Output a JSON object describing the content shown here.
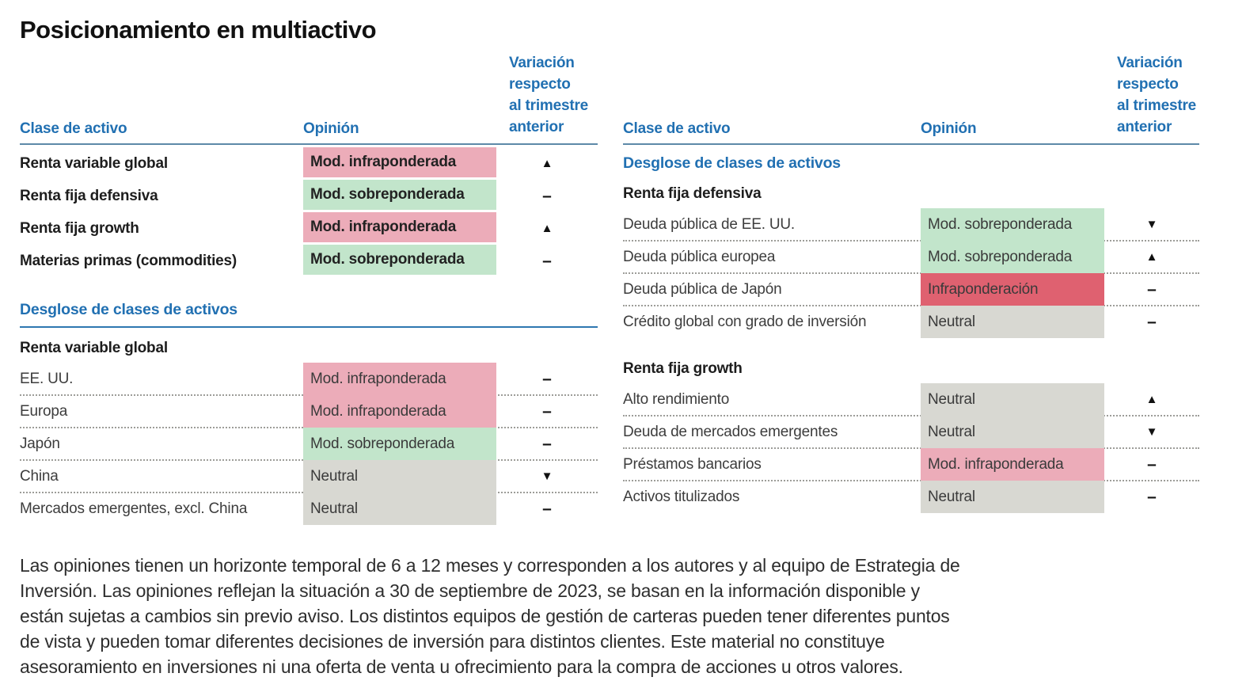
{
  "title": "Posicionamiento en multiactivo",
  "colors": {
    "accent_blue": "#2170b2",
    "header_rule": "#5d89a8",
    "section_rule": "#2e77b0"
  },
  "tone_colors": {
    "pink": "#ecacb9",
    "green": "#c2e5cb",
    "red": "#df6170",
    "gray": "#d8d8d2"
  },
  "change_glyphs": {
    "up": "▲",
    "down": "▼",
    "flat": "–"
  },
  "column_headers": {
    "asset_class": "Clase de activo",
    "opinion": "Opinión",
    "variation_lines": [
      "Variación",
      "respecto",
      "al trimestre",
      "anterior"
    ]
  },
  "left_table": {
    "top_rows": [
      {
        "label": "Renta variable global",
        "opinion": "Mod. infraponderada",
        "tone": "pink",
        "change": "up"
      },
      {
        "label": "Renta fija defensiva",
        "opinion": "Mod. sobreponderada",
        "tone": "green",
        "change": "flat"
      },
      {
        "label": "Renta fija growth",
        "opinion": "Mod. infraponderada",
        "tone": "pink",
        "change": "up"
      },
      {
        "label": "Materias primas (commodities)",
        "opinion": "Mod. sobreponderada",
        "tone": "green",
        "change": "flat"
      }
    ],
    "breakdown_title": "Desglose de clases de activos",
    "group_title": "Renta variable global",
    "rows": [
      {
        "label": "EE. UU.",
        "opinion": "Mod. infraponderada",
        "tone": "pink",
        "change": "flat"
      },
      {
        "label": "Europa",
        "opinion": "Mod. infraponderada",
        "tone": "pink",
        "change": "flat"
      },
      {
        "label": "Japón",
        "opinion": "Mod. sobreponderada",
        "tone": "green",
        "change": "flat"
      },
      {
        "label": "China",
        "opinion": "Neutral",
        "tone": "gray",
        "change": "down"
      },
      {
        "label": "Mercados emergentes, excl. China",
        "opinion": "Neutral",
        "tone": "gray",
        "change": "flat"
      }
    ]
  },
  "right_table": {
    "breakdown_title": "Desglose de clases de activos",
    "group1_title": "Renta fija defensiva",
    "group1_rows": [
      {
        "label": "Deuda pública de EE. UU.",
        "opinion": "Mod. sobreponderada",
        "tone": "green",
        "change": "down"
      },
      {
        "label": "Deuda pública europea",
        "opinion": "Mod. sobreponderada",
        "tone": "green",
        "change": "up"
      },
      {
        "label": "Deuda pública de Japón",
        "opinion": "Infraponderación",
        "tone": "red",
        "change": "flat"
      },
      {
        "label": "Crédito global con grado de inversión",
        "opinion": "Neutral",
        "tone": "gray",
        "change": "flat"
      }
    ],
    "group2_title": "Renta fija growth",
    "group2_rows": [
      {
        "label": "Alto rendimiento",
        "opinion": "Neutral",
        "tone": "gray",
        "change": "up"
      },
      {
        "label": "Deuda de mercados emergentes",
        "opinion": "Neutral",
        "tone": "gray",
        "change": "down"
      },
      {
        "label": "Préstamos bancarios",
        "opinion": "Mod. infraponderada",
        "tone": "pink",
        "change": "flat"
      },
      {
        "label": "Activos titulizados",
        "opinion": "Neutral",
        "tone": "gray",
        "change": "flat"
      }
    ]
  },
  "footnote_lines": [
    "Las opiniones tienen un horizonte temporal de 6 a 12 meses y corresponden a los autores y al equipo de Estrategia de",
    "Inversión. Las opiniones reflejan la situación a 30 de septiembre de 2023, se basan en la información disponible y",
    "están sujetas a cambios sin previo aviso. Los distintos equipos de gestión de carteras pueden tener diferentes puntos",
    "de vista y pueden tomar diferentes decisiones de inversión para distintos clientes. Este material no constituye",
    "asesoramiento en inversiones ni una oferta de venta u ofrecimiento para la compra de acciones u otros valores."
  ]
}
